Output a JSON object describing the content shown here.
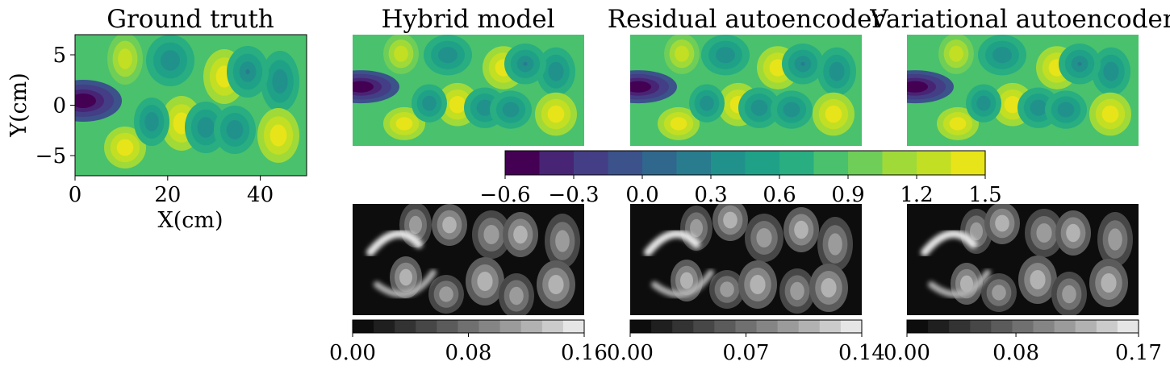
{
  "figure": {
    "panel_titles": [
      "Ground truth",
      "Hybrid model",
      "Residual autoencoder",
      "Variational autoencoder"
    ]
  },
  "chart_data": [
    {
      "type": "heatmap",
      "title": "Ground truth",
      "xlabel": "X(cm)",
      "ylabel": "Y(cm)",
      "xlim": [
        0,
        50
      ],
      "ylim": [
        -7,
        7
      ],
      "xticks": [
        0,
        20,
        40
      ],
      "xtick_labels": [
        "0",
        "20",
        "40"
      ],
      "yticks": [
        5,
        0,
        -5
      ],
      "ytick_labels": [
        "5",
        "0",
        "−5"
      ],
      "colormap": "viridis"
    },
    {
      "type": "heatmap",
      "title": "Hybrid model",
      "colormap": "viridis",
      "axes_visible": false
    },
    {
      "type": "heatmap",
      "title": "Residual autoencoder",
      "colormap": "viridis",
      "axes_visible": false
    },
    {
      "type": "heatmap",
      "title": "Variational autoencoder",
      "colormap": "viridis",
      "axes_visible": false
    },
    {
      "type": "heatmap",
      "colormap": "gray",
      "axes_visible": false,
      "role": "error map (Hybrid model)"
    },
    {
      "type": "heatmap",
      "colormap": "gray",
      "axes_visible": false,
      "role": "error map (Residual autoencoder)"
    },
    {
      "type": "heatmap",
      "colormap": "gray",
      "axes_visible": false,
      "role": "error map (Variational autoencoder)"
    },
    {
      "type": "colorbar",
      "colormap": "viridis",
      "range": [
        -0.6,
        1.5
      ],
      "levels": 14,
      "ticks": [
        -0.6,
        -0.3,
        0.0,
        0.3,
        0.6,
        0.9,
        1.2,
        1.5
      ],
      "tick_labels": [
        "−0.6",
        "−0.3",
        "0.0",
        "0.3",
        "0.6",
        "0.9",
        "1.2",
        "1.5"
      ],
      "colors": [
        "#440154",
        "#482475",
        "#433e85",
        "#3b528b",
        "#30678d",
        "#287c8e",
        "#21918c",
        "#1fa187",
        "#28ae80",
        "#4ac16d",
        "#6ece58",
        "#a0da39",
        "#c2df23",
        "#e7e419"
      ]
    },
    {
      "type": "colorbar",
      "colormap": "gray",
      "range": [
        0,
        0.16
      ],
      "levels": 11,
      "ticks": [
        0,
        0.08,
        0.16
      ],
      "tick_labels": [
        "0.00",
        "0.08",
        "0.16"
      ]
    },
    {
      "type": "colorbar",
      "colormap": "gray",
      "range": [
        0,
        0.14
      ],
      "levels": 11,
      "ticks": [
        0,
        0.07,
        0.14
      ],
      "tick_labels": [
        "0.00",
        "0.07",
        "0.14"
      ]
    },
    {
      "type": "colorbar",
      "colormap": "gray",
      "range": [
        0,
        0.17
      ],
      "levels": 11,
      "ticks": [
        0,
        0.08,
        0.17
      ],
      "tick_labels": [
        "0.00",
        "0.08",
        "0.17"
      ]
    }
  ]
}
